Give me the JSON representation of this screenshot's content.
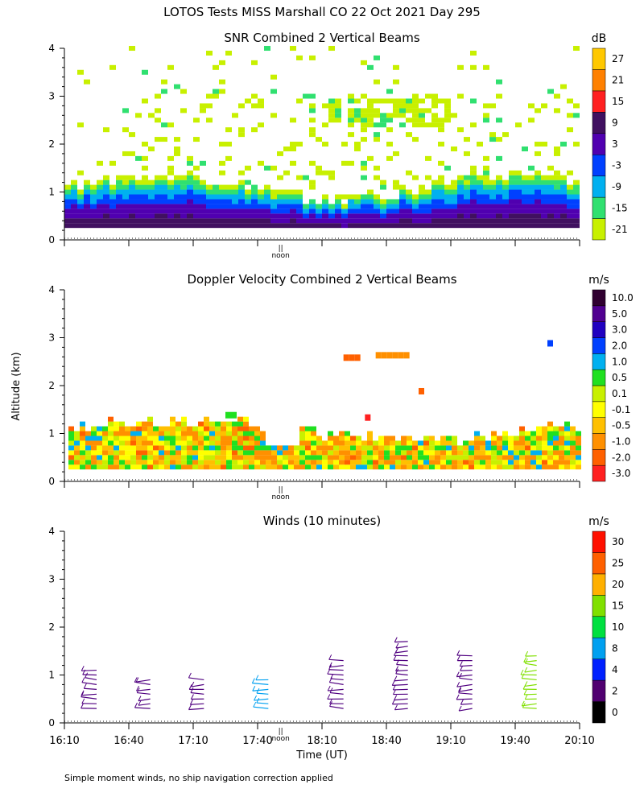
{
  "figure": {
    "title": "LOTOS Tests MISS Marshall CO  22 Oct 2021 Day 295",
    "y_axis_label": "Altitude (km)",
    "x_axis_label": "Time (UT)",
    "noon_label": "noon",
    "noon_marker": "||",
    "footnote": "Simple moment winds, no ship navigation correction applied"
  },
  "chart_data": [
    {
      "type": "heatmap",
      "title": "SNR Combined 2 Vertical Beams",
      "unit": "dB",
      "ylim": [
        0,
        4
      ],
      "yticks": [
        "0",
        "1",
        "2",
        "3",
        "4"
      ],
      "x_range": [
        "16:10",
        "20:10"
      ],
      "colorbar": [
        {
          "label": "-21",
          "color": "#c8f000"
        },
        {
          "label": "-15",
          "color": "#30e070"
        },
        {
          "label": "-9",
          "color": "#00b0f0"
        },
        {
          "label": "-3",
          "color": "#0040ff"
        },
        {
          "label": "3",
          "color": "#5000b0"
        },
        {
          "label": "9",
          "color": "#401060"
        },
        {
          "label": "15",
          "color": "#ff2020"
        },
        {
          "label": "21",
          "color": "#ff8000"
        },
        {
          "label": "27",
          "color": "#ffc800"
        }
      ]
    },
    {
      "type": "heatmap",
      "title": "Doppler Velocity Combined 2 Vertical Beams",
      "unit": "m/s",
      "ylim": [
        0,
        4
      ],
      "yticks": [
        "0",
        "1",
        "2",
        "3",
        "4"
      ],
      "x_range": [
        "16:10",
        "20:10"
      ],
      "colorbar": [
        {
          "label": "-3.0",
          "color": "#ff2020"
        },
        {
          "label": "-2.0",
          "color": "#ff6000"
        },
        {
          "label": "-1.0",
          "color": "#ff9000"
        },
        {
          "label": "-0.5",
          "color": "#ffc000"
        },
        {
          "label": "-0.1",
          "color": "#ffff00"
        },
        {
          "label": "0.1",
          "color": "#c8f000"
        },
        {
          "label": "0.5",
          "color": "#20e020"
        },
        {
          "label": "1.0",
          "color": "#00b0f0"
        },
        {
          "label": "2.0",
          "color": "#0040ff"
        },
        {
          "label": "3.0",
          "color": "#2000c0"
        },
        {
          "label": "5.0",
          "color": "#500090"
        },
        {
          "label": "10.0",
          "color": "#300030"
        }
      ]
    },
    {
      "type": "scatter",
      "title": "Winds (10 minutes)",
      "unit": "m/s",
      "ylim": [
        0,
        4
      ],
      "yticks": [
        "0",
        "1",
        "2",
        "3",
        "4"
      ],
      "xticks": [
        "16:10",
        "16:40",
        "17:10",
        "17:40",
        "18:10",
        "18:40",
        "19:10",
        "19:40",
        "20:10"
      ],
      "colorbar": [
        {
          "label": "0",
          "color": "#000000"
        },
        {
          "label": "2",
          "color": "#500070"
        },
        {
          "label": "4",
          "color": "#0020ff"
        },
        {
          "label": "8",
          "color": "#00a0f0"
        },
        {
          "label": "10",
          "color": "#00e040"
        },
        {
          "label": "15",
          "color": "#80e000"
        },
        {
          "label": "20",
          "color": "#ffb000"
        },
        {
          "label": "25",
          "color": "#ff6000"
        },
        {
          "label": "30",
          "color": "#ff1000"
        }
      ],
      "profiles": [
        {
          "time": "16:25",
          "wind_color": "#500080",
          "top_km": 1.1
        },
        {
          "time": "16:50",
          "wind_color": "#500080",
          "top_km": 0.9
        },
        {
          "time": "17:15",
          "wind_color": "#500080",
          "top_km": 0.9
        },
        {
          "time": "17:45",
          "wind_color": "#00a0f0",
          "top_km": 0.9
        },
        {
          "time": "18:20",
          "wind_color": "#500080",
          "top_km": 1.3
        },
        {
          "time": "18:50",
          "wind_color": "#500080",
          "top_km": 1.8
        },
        {
          "time": "19:20",
          "wind_color": "#500080",
          "top_km": 1.5
        },
        {
          "time": "19:50",
          "wind_color": "#80e000",
          "top_km": 1.5
        }
      ]
    }
  ]
}
